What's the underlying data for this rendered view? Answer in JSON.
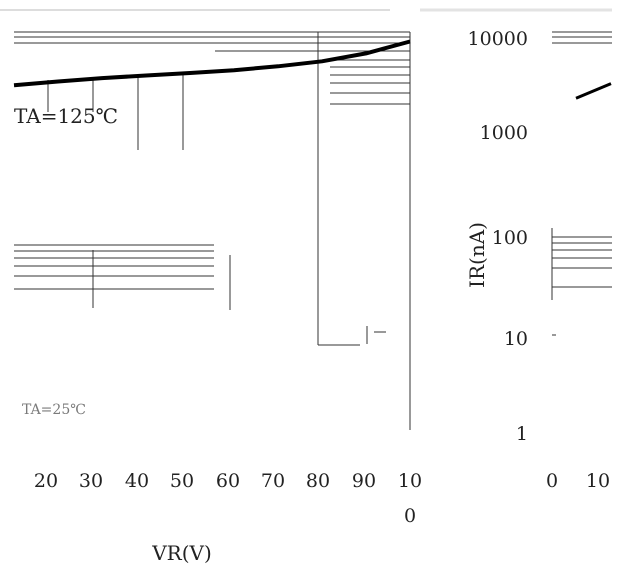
{
  "chart_data": [
    {
      "type": "line",
      "title": "",
      "xlabel": "VR(V)",
      "x_tick_labels": [
        "20",
        "30",
        "40",
        "50",
        "60",
        "70",
        "80",
        "90",
        "10",
        "0"
      ],
      "annotations": [
        "TA=125℃",
        "TA=25℃"
      ],
      "series": [
        {
          "x": [
            10,
            20,
            30,
            40,
            50,
            60,
            70,
            80,
            90,
            100
          ],
          "values": [
            3200,
            3500,
            3800,
            4050,
            4300,
            4600,
            5050,
            5700,
            6900,
            9200
          ]
        }
      ],
      "grid": false
    },
    {
      "type": "line",
      "title": "",
      "ylabel": "IR(nA)",
      "y_tick_labels": [
        "10000",
        "1000",
        "100",
        "10",
        "1"
      ],
      "x_tick_labels": [
        "0",
        "10"
      ],
      "y_scale": "log",
      "ylim": [
        1,
        10000
      ],
      "series": [
        {
          "x": [
            0,
            10
          ],
          "values": [
            2500,
            3500
          ]
        }
      ],
      "grid": false
    }
  ],
  "colors": {
    "line": "#000000",
    "grid": "#444444",
    "text": "#222222"
  },
  "icons": []
}
